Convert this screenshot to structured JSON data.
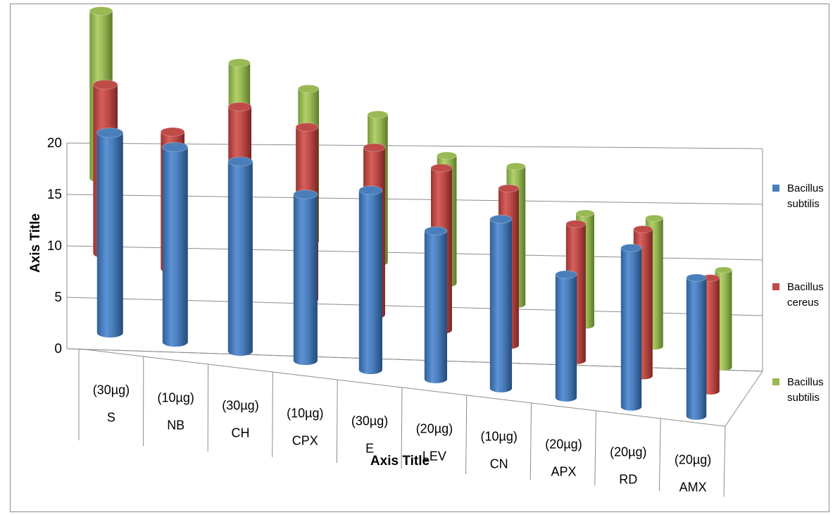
{
  "chart_data": {
    "type": "bar",
    "style": "3d-cylinder",
    "title": "",
    "xlabel": "Axis Title",
    "ylabel": "Axis Title",
    "ylim": [
      0,
      20
    ],
    "yticks": [
      0,
      5,
      10,
      15,
      20
    ],
    "grid": true,
    "legend_position": "right",
    "categories": [
      {
        "dose": "(30µg)",
        "code": "S"
      },
      {
        "dose": "(10µg)",
        "code": "NB"
      },
      {
        "dose": "(30µg)",
        "code": "CH"
      },
      {
        "dose": "(10µg)",
        "code": "CPX"
      },
      {
        "dose": "(30µg)",
        "code": "E"
      },
      {
        "dose": "(20µg)",
        "code": "LEV"
      },
      {
        "dose": "(10µg)",
        "code": "CN"
      },
      {
        "dose": "(20µg)",
        "code": "APX"
      },
      {
        "dose": "(20µg)",
        "code": "RD"
      },
      {
        "dose": "(20µg)",
        "code": "AMX"
      }
    ],
    "series": [
      {
        "name": "Bacillus subtilis",
        "color": "#4a7ebb",
        "values": [
          20,
          20,
          20,
          18,
          20,
          17,
          20,
          15,
          20,
          18
        ]
      },
      {
        "name": "Bacillus cereus",
        "color": "#be4b48",
        "values": [
          18,
          15,
          20,
          20,
          20,
          20,
          20,
          18,
          20,
          16
        ]
      },
      {
        "name": "Bacillus subtilis",
        "color": "#98b954",
        "values": [
          19,
          0,
          19,
          19,
          19,
          17,
          19,
          16,
          19,
          15
        ]
      }
    ]
  }
}
